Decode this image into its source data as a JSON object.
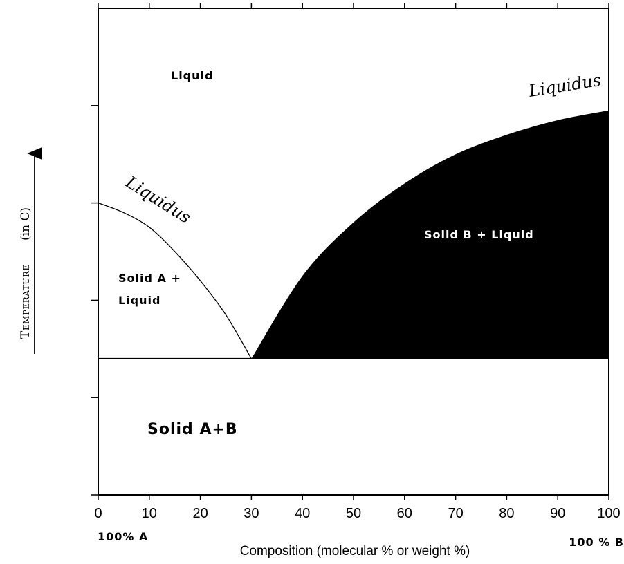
{
  "chart_data": {
    "type": "area",
    "title": "",
    "xlabel": "Composition (molecular % or weight %)",
    "ylabel_main": "Temperature",
    "ylabel_unit": "(in C)",
    "xlim": [
      0,
      100
    ],
    "ylim": [
      0,
      100
    ],
    "x_ticks": [
      0,
      10,
      20,
      30,
      40,
      50,
      60,
      70,
      80,
      90,
      100
    ],
    "x_tick_labels": [
      "0",
      "10",
      "20",
      "30",
      "40",
      "50",
      "60",
      "70",
      "80",
      "90",
      "100"
    ],
    "y_ticks": [
      20,
      40,
      60,
      80
    ],
    "eutectic": {
      "x": 30,
      "y": 28
    },
    "liquidus_A": {
      "x": [
        0,
        5,
        10,
        15,
        20,
        25,
        30
      ],
      "y": [
        60,
        58,
        55,
        50,
        44,
        37,
        28
      ]
    },
    "liquidus_B": {
      "x": [
        30,
        40,
        50,
        60,
        70,
        80,
        90,
        100
      ],
      "y": [
        28,
        45,
        56,
        64,
        70,
        74,
        77,
        79
      ]
    },
    "labels": {
      "liquid": "Liquid",
      "solid_a_liquid_line1": "Solid A +",
      "solid_a_liquid_line2": "Liquid",
      "solid_b_liquid": "Solid B + Liquid",
      "solid_ab": "Solid A+B",
      "liquidus_left": "Liquidus",
      "liquidus_right": "Liquidus",
      "end_a": "100% A",
      "end_b": "100 % B"
    },
    "colors": {
      "solid_b_region": "#000000",
      "curve": "#000000",
      "background": "#ffffff"
    }
  }
}
